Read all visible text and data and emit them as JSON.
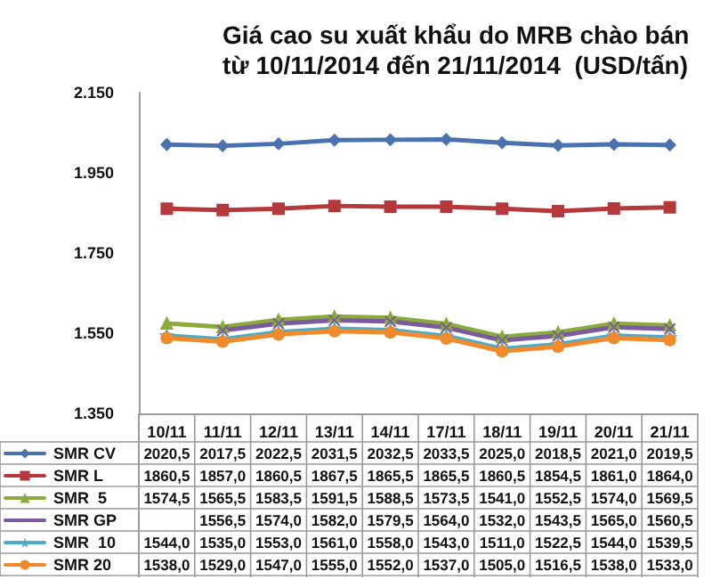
{
  "chart_data": {
    "type": "line",
    "title": "Giá cao su xuất khẩu do MRB chào bán\ntừ 10/11/2014 đến 21/11/2014  (USD/tấn)",
    "categories": [
      "10/11",
      "11/11",
      "12/11",
      "13/11",
      "14/11",
      "17/11",
      "18/11",
      "19/11",
      "20/11",
      "21/11"
    ],
    "ylim": [
      1350,
      2150
    ],
    "yticks": [
      {
        "value": 1350,
        "label": "1.350"
      },
      {
        "value": 1550,
        "label": "1.550"
      },
      {
        "value": 1750,
        "label": "1.750"
      },
      {
        "value": 1950,
        "label": "1.950"
      },
      {
        "value": 2150,
        "label": "2.150"
      }
    ],
    "grid": false,
    "legend": "bottom left",
    "series": [
      {
        "name": "SMR CV",
        "color": "#4a72b0",
        "marker": "diamond",
        "values": [
          2020.5,
          2017.5,
          2022.5,
          2031.5,
          2032.5,
          2033.5,
          2025.0,
          2018.5,
          2021.0,
          2019.5
        ],
        "value_labels": [
          "2020,5",
          "2017,5",
          "2022,5",
          "2031,5",
          "2032,5",
          "2033,5",
          "2025,0",
          "2018,5",
          "2021,0",
          "2019,5"
        ]
      },
      {
        "name": "SMR L",
        "color": "#b5393a",
        "marker": "square",
        "values": [
          1860.5,
          1857.0,
          1860.5,
          1867.5,
          1865.5,
          1865.5,
          1860.5,
          1854.5,
          1861.0,
          1864.0
        ],
        "value_labels": [
          "1860,5",
          "1857,0",
          "1860,5",
          "1867,5",
          "1865,5",
          "1865,5",
          "1860,5",
          "1854,5",
          "1861,0",
          "1864,0"
        ]
      },
      {
        "name": "SMR  5",
        "color": "#8aaa3b",
        "marker": "triangle",
        "values": [
          1574.5,
          1565.5,
          1583.5,
          1591.5,
          1588.5,
          1573.5,
          1541.0,
          1552.5,
          1574.0,
          1569.5
        ],
        "value_labels": [
          "1574,5",
          "1565,5",
          "1583,5",
          "1591,5",
          "1588,5",
          "1573,5",
          "1541,0",
          "1552,5",
          "1574,0",
          "1569,5"
        ]
      },
      {
        "name": "SMR GP",
        "color": "#7b5a9e",
        "marker": "cross",
        "values": [
          null,
          1556.5,
          1574.0,
          1582.0,
          1579.5,
          1564.0,
          1532.0,
          1543.5,
          1565.0,
          1560.5
        ],
        "value_labels": [
          null,
          "1556,5",
          "1574,0",
          "1582,0",
          "1579,5",
          "1564,0",
          "1532,0",
          "1543,5",
          "1565,0",
          "1560,5"
        ]
      },
      {
        "name": "SMR  10",
        "color": "#4bacc6",
        "marker": "star",
        "values": [
          1544.0,
          1535.0,
          1553.0,
          1561.0,
          1558.0,
          1543.0,
          1511.0,
          1522.5,
          1544.0,
          1539.5
        ],
        "value_labels": [
          "1544,0",
          "1535,0",
          "1553,0",
          "1561,0",
          "1558,0",
          "1543,0",
          "1511,0",
          "1522,5",
          "1544,0",
          "1539,5"
        ]
      },
      {
        "name": "SMR 20",
        "color": "#f08a2b",
        "marker": "circle",
        "values": [
          1538.0,
          1529.0,
          1547.0,
          1555.0,
          1552.0,
          1537.0,
          1505.0,
          1516.5,
          1538.0,
          1533.0
        ],
        "value_labels": [
          "1538,0",
          "1529,0",
          "1547,0",
          "1555,0",
          "1552,0",
          "1537,0",
          "1505,0",
          "1516,5",
          "1538,0",
          "1533,0"
        ]
      }
    ]
  }
}
